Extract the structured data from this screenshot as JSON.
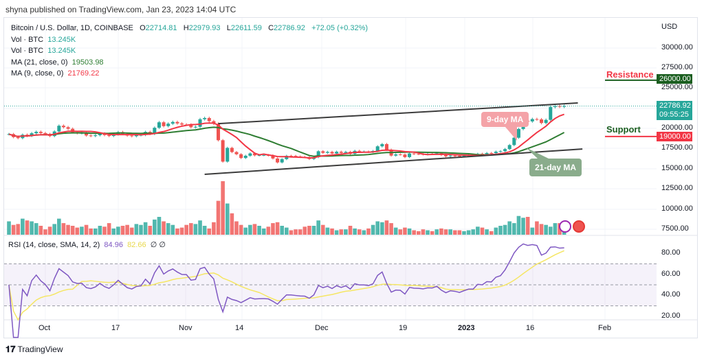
{
  "publisher": "shyna published on TradingView.com, Jan 23, 2023 14:04 UTC",
  "legend": {
    "symbol": "Bitcoin / U.S. Dollar, 1D, COINBASE",
    "o_label": "O",
    "open": "22714.81",
    "h_label": "H",
    "high": "22979.93",
    "l_label": "L",
    "low": "22611.59",
    "c_label": "C",
    "close": "22786.92",
    "change": "+72.05 (+0.32%)",
    "vol1_label": "Vol · BTC",
    "vol1": "13.245K",
    "vol2_label": "Vol · BTC",
    "vol2": "13.245K",
    "ma21_label": "MA (21, close, 0)",
    "ma21": "19503.98",
    "ma9_label": "MA (9, close, 0)",
    "ma9": "21769.22",
    "rsi_label": "RSI (14, close, SMA, 14, 2)",
    "rsi": "84.96",
    "rsi_sma": "82.66",
    "rsi_extra": "∅ ∅"
  },
  "price_axis": {
    "currency": "USD",
    "ticks": [
      "30000.00",
      "27500.00",
      "25000.00",
      "20000.00",
      "17500.00",
      "15000.00",
      "12500.00",
      "10000.00",
      "7500.00"
    ],
    "last_price": "22786.92",
    "countdown": "09:55:25",
    "resistance_price": "26000.00",
    "support_price": "19000.00"
  },
  "rsi_axis": {
    "ticks": [
      "80.00",
      "60.00",
      "40.00",
      "20.00"
    ]
  },
  "time_axis": {
    "ticks": [
      "Oct",
      "17",
      "Nov",
      "14",
      "Dec",
      "19",
      "2023",
      "16",
      "Feb"
    ]
  },
  "annotations": {
    "resistance": "Resistance",
    "support": "Support",
    "ma9": "9-day MA",
    "ma21": "21-day MA"
  },
  "colors": {
    "up": "#26a69a",
    "down": "#ef5350",
    "ma9": "#f23645",
    "ma21": "#2e7d32",
    "rsi": "#7e57c2",
    "rsi_sma": "#f5e663",
    "resistance": "#1b5e20",
    "support": "#f23645"
  },
  "logo": "TradingView",
  "chart_data": {
    "type": "candlestick",
    "start_date": "2022-09-23",
    "interval": "1D",
    "closes": [
      19300,
      18930,
      18800,
      19220,
      19080,
      19410,
      19590,
      19430,
      19310,
      19060,
      19630,
      20340,
      20160,
      19960,
      19530,
      19420,
      19440,
      19130,
      19060,
      19160,
      19380,
      19180,
      19070,
      19270,
      19550,
      19330,
      19120,
      19040,
      19170,
      19200,
      19570,
      19330,
      20090,
      20770,
      20290,
      20600,
      20810,
      20630,
      20490,
      20480,
      20160,
      20210,
      21150,
      21300,
      20910,
      20590,
      18540,
      15880,
      17590,
      17070,
      16800,
      16330,
      16610,
      16900,
      16660,
      16690,
      16700,
      16650,
      16270,
      15780,
      16190,
      16600,
      16590,
      16520,
      16460,
      16440,
      16210,
      16440,
      17170,
      16970,
      17090,
      16890,
      17110,
      16970,
      17090,
      16840,
      17220,
      17130,
      17130,
      17090,
      17200,
      17780,
      18060,
      17360,
      16630,
      16780,
      16760,
      16440,
      16890,
      16830,
      16820,
      16780,
      16840,
      16830,
      16920,
      16700,
      16540,
      16630,
      16600,
      16540,
      16610,
      16670,
      16670,
      16850,
      16830,
      16950,
      16940,
      17120,
      17180,
      17440,
      17940,
      18850,
      19930,
      20950,
      20880,
      21170,
      21130,
      20680,
      21070,
      22670,
      22780,
      22710,
      22786.92
    ],
    "volumes_k": [
      30,
      22,
      24,
      36,
      32,
      30,
      26,
      20,
      12,
      18,
      24,
      36,
      26,
      22,
      20,
      16,
      18,
      22,
      14,
      14,
      20,
      18,
      26,
      14,
      18,
      20,
      22,
      16,
      24,
      22,
      28,
      20,
      34,
      40,
      30,
      26,
      22,
      14,
      16,
      22,
      26,
      24,
      32,
      20,
      14,
      28,
      76,
      120,
      70,
      48,
      30,
      22,
      16,
      22,
      24,
      20,
      14,
      18,
      26,
      28,
      20,
      16,
      10,
      12,
      12,
      18,
      20,
      20,
      32,
      22,
      16,
      14,
      10,
      12,
      12,
      20,
      14,
      12,
      10,
      14,
      22,
      30,
      28,
      32,
      26,
      16,
      12,
      16,
      14,
      10,
      8,
      12,
      10,
      8,
      12,
      14,
      12,
      12,
      10,
      10,
      8,
      10,
      12,
      18,
      16,
      12,
      8,
      16,
      20,
      22,
      30,
      26,
      42,
      38,
      40,
      16,
      30,
      24,
      22,
      18,
      26,
      26,
      13.245
    ],
    "trendlines": [
      {
        "from": [
          "2022-11-08",
          20600
        ],
        "to": [
          "2023-01-26",
          23170
        ]
      },
      {
        "from": [
          "2022-11-05",
          14300
        ],
        "to": [
          "2023-01-27",
          17450
        ]
      }
    ],
    "price_range": [
      6500,
      31500
    ],
    "rsi_range": [
      15,
      95
    ],
    "rsi_bands": [
      30,
      50,
      70
    ],
    "resistance": 26000,
    "support": 19000
  }
}
